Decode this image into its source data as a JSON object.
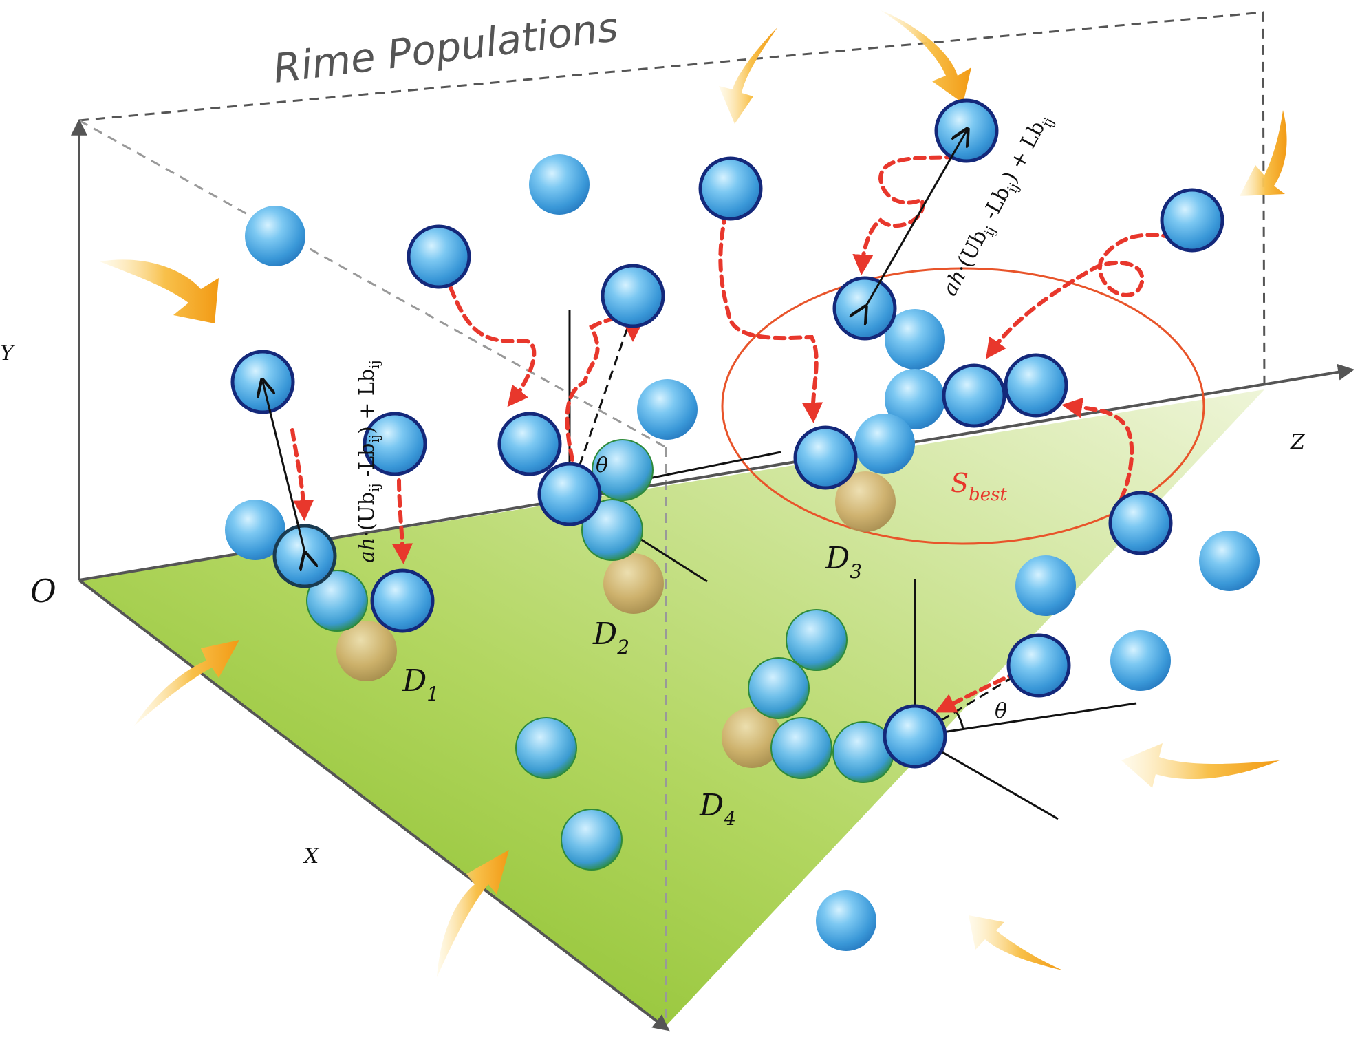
{
  "title": "Rime Populations",
  "axes": {
    "origin": "O",
    "y": "Y",
    "z": "Z",
    "x": "X"
  },
  "regions": [
    {
      "letter": "D",
      "sub": "1"
    },
    {
      "letter": "D",
      "sub": "2"
    },
    {
      "letter": "D",
      "sub": "3"
    },
    {
      "letter": "D",
      "sub": "4"
    }
  ],
  "formula": {
    "italic_prefix": "ah",
    "dot": "·",
    "open": "(Ub",
    "sub_ij": "ij",
    "minus": " -Lb",
    "close": ") + Lb"
  },
  "angle_symbol": "θ",
  "best": {
    "letter": "S",
    "sub": "best"
  },
  "colors": {
    "plane_dark": "#8dc21f",
    "plane_light": "#e6f0c8",
    "sphere_light": "#a6e0f8",
    "sphere_mid": "#3c9fdc",
    "sphere_rim": "#14287a",
    "sphere_green_rim": "#2e8a3a",
    "frozen": "#c9a865",
    "dashed_arrow": "#e8372c",
    "ellipse": "#e8542a",
    "wind_arrow": "#f5a623",
    "axis": "#555555"
  }
}
